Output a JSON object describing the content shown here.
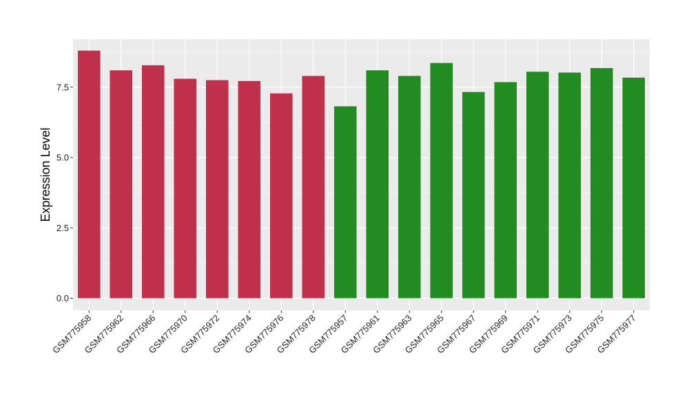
{
  "chart_data": {
    "type": "bar",
    "title": "",
    "xlabel": "",
    "ylabel": "Expression Level",
    "ylim": [
      0,
      8.9
    ],
    "yticks": [
      0.0,
      2.5,
      5.0,
      7.5
    ],
    "ytick_labels": [
      "0.0",
      "2.5",
      "5.0",
      "7.5"
    ],
    "grid": true,
    "panel_background": "#ebebeb",
    "grid_color": "#ffffff",
    "categories": [
      "GSM775958",
      "GSM775962",
      "GSM775966",
      "GSM775970",
      "GSM775972",
      "GSM775974",
      "GSM775976",
      "GSM775978",
      "GSM775957",
      "GSM775961",
      "GSM775963",
      "GSM775965",
      "GSM775967",
      "GSM775969",
      "GSM775971",
      "GSM775973",
      "GSM775975",
      "GSM775977"
    ],
    "values": [
      8.8,
      8.1,
      8.28,
      7.8,
      7.75,
      7.72,
      7.28,
      7.9,
      6.82,
      8.1,
      7.9,
      8.36,
      7.33,
      7.68,
      8.05,
      8.02,
      8.18,
      7.84
    ],
    "colors": [
      "#c1304a",
      "#c1304a",
      "#c1304a",
      "#c1304a",
      "#c1304a",
      "#c1304a",
      "#c1304a",
      "#c1304a",
      "#228b22",
      "#228b22",
      "#228b22",
      "#228b22",
      "#228b22",
      "#228b22",
      "#228b22",
      "#228b22",
      "#228b22",
      "#228b22"
    ]
  }
}
